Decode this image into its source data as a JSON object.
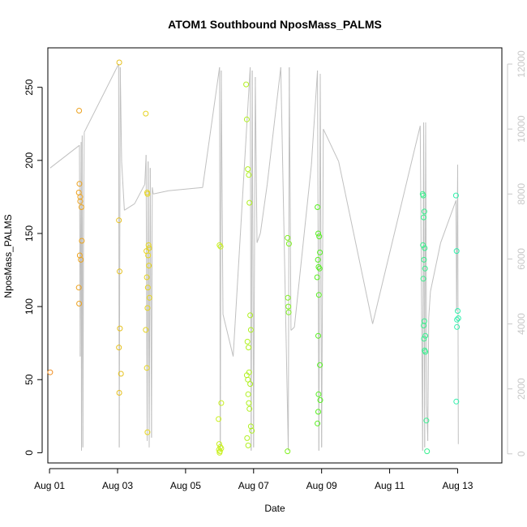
{
  "chart_data": {
    "type": "scatter",
    "title": "ATOM1 Southbound NposMass_PALMS",
    "xlabel": "Date",
    "ylabel": "NposMass_PALMS",
    "x_ticks": [
      "Aug 01",
      "Aug 03",
      "Aug 05",
      "Aug 07",
      "Aug 09",
      "Aug 11",
      "Aug 13"
    ],
    "y_ticks": [
      0,
      50,
      100,
      150,
      200,
      250
    ],
    "y2_ticks": [
      0,
      2000,
      4000,
      6000,
      8000,
      10000,
      12000
    ],
    "xlim": [
      -0.05,
      13.3
    ],
    "ylim": [
      -7,
      277
    ],
    "y2lim": [
      -280,
      12500
    ],
    "grid": false,
    "colors": {
      "line": "#c0c0c0",
      "right_axis": "#c8c8c8",
      "point_gradient": [
        "#f08a1c",
        "#e6c020",
        "#e6f020",
        "#aaf020",
        "#50f020",
        "#40f070",
        "#30f0b0"
      ]
    },
    "series": [
      {
        "x": [
          0.02,
          0.87,
          0.88,
          0.86,
          0.9,
          0.94,
          0.95,
          0.89,
          0.92,
          0.86,
          0.87,
          0.9,
          2.05,
          2.04,
          2.06,
          2.07,
          2.04,
          2.1,
          2.05,
          2.83,
          2.87,
          2.88,
          2.91,
          2.93,
          2.85,
          2.9,
          2.92,
          2.86,
          2.89,
          2.94,
          2.88,
          2.83,
          2.86,
          2.88,
          5.0,
          5.03,
          5.05,
          4.97,
          4.99,
          5.02,
          5.05,
          4.98,
          5.01,
          5.0,
          5.78,
          5.8,
          5.83,
          5.86,
          5.88,
          5.9,
          5.92,
          5.82,
          5.85,
          5.87,
          5.8,
          5.83,
          5.9,
          5.84,
          5.86,
          5.88,
          5.92,
          5.95,
          5.81,
          5.84,
          7.0,
          7.04,
          7.01,
          7.02,
          7.03,
          7.0,
          7.88,
          7.9,
          7.93,
          7.95,
          7.89,
          7.91,
          7.94,
          7.87,
          7.92,
          7.9,
          7.95,
          7.91,
          7.96,
          7.9,
          7.88,
          10.97,
          10.99,
          11.02,
          11.0,
          10.98,
          11.03,
          11.01,
          11.04,
          10.99,
          11.02,
          11.0,
          11.05,
          11.01,
          11.03,
          11.05,
          11.08,
          11.1,
          11.95,
          11.97,
          12.0,
          12.02,
          11.98,
          11.96,
          11.98
        ],
        "y": [
          55,
          234,
          184,
          178,
          172,
          168,
          145,
          135,
          132,
          113,
          102,
          175,
          267,
          159,
          124,
          85,
          72,
          54,
          41,
          232,
          178,
          177,
          142,
          140,
          138,
          135,
          128,
          120,
          113,
          106,
          99,
          84,
          58,
          14,
          142,
          141,
          34,
          23,
          6,
          4,
          3,
          2,
          1,
          0,
          252,
          228,
          194,
          190,
          171,
          94,
          84,
          76,
          72,
          55,
          53,
          50,
          47,
          40,
          34,
          30,
          18,
          15,
          10,
          5,
          147,
          143,
          106,
          100,
          96,
          1,
          168,
          150,
          148,
          137,
          132,
          127,
          126,
          120,
          108,
          80,
          60,
          40,
          36,
          28,
          20,
          177,
          176,
          165,
          161,
          142,
          140,
          132,
          126,
          119,
          90,
          87,
          80,
          78,
          70,
          69,
          22,
          1,
          176,
          138,
          97,
          92,
          86,
          35,
          91
        ]
      }
    ],
    "right_axis_series": {
      "name": "",
      "x": [
        0.02,
        0.88,
        0.9,
        0.93,
        0.94,
        0.96,
        0.98,
        1.0,
        1.02,
        2.03,
        2.05,
        2.08,
        2.12,
        2.2,
        2.5,
        2.8,
        2.84,
        2.87,
        2.9,
        2.93,
        2.96,
        3.0,
        3.02,
        3.05,
        3.5,
        4.5,
        5.0,
        5.02,
        5.05,
        5.1,
        5.4,
        5.9,
        5.93,
        5.96,
        6.0,
        6.05,
        6.1,
        6.2,
        6.4,
        6.8,
        7.02,
        7.05,
        7.1,
        7.2,
        7.7,
        7.88,
        7.92,
        7.96,
        8.0,
        8.05,
        8.5,
        9.5,
        10.9,
        10.97,
        11.0,
        11.03,
        11.06,
        11.09,
        11.12,
        11.15,
        11.2,
        11.5,
        11.95,
        11.97,
        12.0,
        12.02
      ],
      "y": [
        8800,
        9500,
        3000,
        9600,
        100,
        9800,
        200,
        6200,
        9900,
        12000,
        200,
        11900,
        9000,
        7500,
        7700,
        8300,
        9200,
        400,
        9000,
        200,
        8800,
        500,
        8200,
        8000,
        8100,
        8200,
        11900,
        100,
        11800,
        4300,
        3000,
        11900,
        100,
        11800,
        200,
        11600,
        6500,
        6800,
        8300,
        11900,
        100,
        11900,
        3800,
        3900,
        8900,
        11800,
        100,
        11700,
        200,
        10000,
        9000,
        4000,
        10100,
        100,
        10200,
        200,
        10200,
        1500,
        400,
        4200,
        5000,
        6500,
        7800,
        4400,
        8900,
        300
      ]
    }
  }
}
